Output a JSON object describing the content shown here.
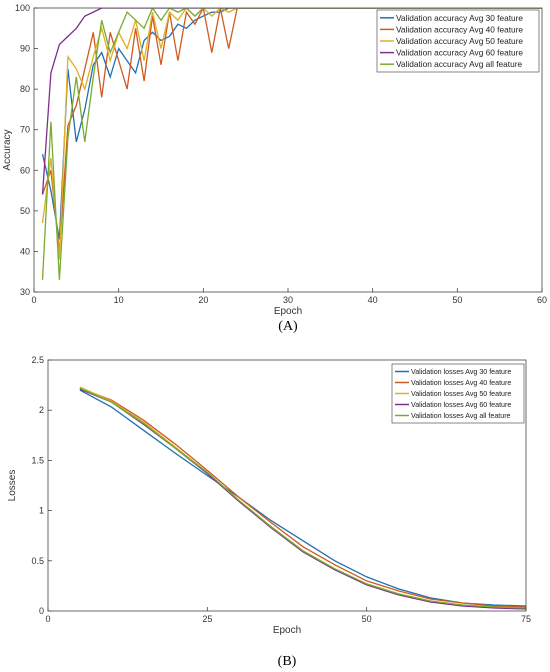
{
  "chart_data": [
    {
      "type": "line",
      "panel_label": "(A)",
      "xlabel": "Epoch",
      "ylabel": "Accuracy",
      "xlim": [
        0,
        60
      ],
      "ylim": [
        30,
        100
      ],
      "xticks": [
        0,
        10,
        20,
        30,
        40,
        50,
        60
      ],
      "yticks": [
        30,
        40,
        50,
        60,
        70,
        80,
        90,
        100
      ],
      "grid": false,
      "legend_position": "top-right",
      "series": [
        {
          "name": "Validation accuracy Avg 30 feature",
          "color": "#1f6fb4",
          "x": [
            1,
            2,
            3,
            4,
            5,
            6,
            7,
            8,
            9,
            10,
            11,
            12,
            13,
            14,
            15,
            16,
            17,
            18,
            19,
            20,
            21,
            22,
            23,
            24,
            25,
            30,
            40,
            50,
            60
          ],
          "y": [
            64,
            55,
            43,
            85,
            67,
            75,
            86,
            89,
            83,
            90,
            87,
            84,
            92,
            94,
            92,
            93,
            96,
            95,
            97,
            98,
            99,
            99,
            100,
            100,
            100,
            100,
            100,
            100,
            100
          ]
        },
        {
          "name": "Validation accuracy Avg 40 feature",
          "color": "#d05a1e",
          "x": [
            1,
            2,
            3,
            4,
            5,
            6,
            7,
            8,
            9,
            10,
            11,
            12,
            13,
            14,
            15,
            16,
            17,
            18,
            19,
            20,
            21,
            22,
            23,
            24,
            25,
            30,
            40,
            50,
            60
          ],
          "y": [
            54,
            60,
            40,
            71,
            76,
            85,
            94,
            78,
            94,
            87,
            80,
            95,
            82,
            98,
            86,
            99,
            87,
            99,
            96,
            100,
            89,
            100,
            90,
            100,
            100,
            100,
            100,
            100,
            100
          ]
        },
        {
          "name": "Validation accuracy Avg 50 feature",
          "color": "#e0b020",
          "x": [
            1,
            2,
            3,
            4,
            5,
            6,
            7,
            8,
            9,
            10,
            11,
            12,
            13,
            14,
            15,
            16,
            17,
            18,
            19,
            20,
            21,
            22,
            23,
            24,
            25,
            30,
            40,
            50,
            60
          ],
          "y": [
            47,
            63,
            38,
            88,
            85,
            80,
            88,
            95,
            87,
            94,
            90,
            97,
            87,
            99,
            90,
            99,
            97,
            100,
            98,
            100,
            98,
            100,
            99,
            100,
            100,
            100,
            100,
            100,
            100
          ]
        },
        {
          "name": "Validation accuracy Avg 60 feature",
          "color": "#7e2f8e",
          "x": [
            1,
            2,
            3,
            4,
            5,
            6,
            7,
            8,
            9,
            10,
            11,
            12,
            13,
            14,
            15,
            20,
            30,
            40,
            50,
            60
          ],
          "y": [
            54,
            84,
            91,
            93,
            95,
            98,
            99,
            100,
            100,
            100,
            100,
            100,
            100,
            100,
            100,
            100,
            100,
            100,
            100,
            100
          ]
        },
        {
          "name": "Validation accuracy Avg all feature",
          "color": "#77ac30",
          "x": [
            1,
            2,
            3,
            4,
            5,
            6,
            7,
            8,
            9,
            10,
            11,
            12,
            13,
            14,
            15,
            16,
            17,
            18,
            19,
            20,
            21,
            22,
            23,
            24,
            25,
            30,
            40,
            50,
            60
          ],
          "y": [
            33,
            72,
            33,
            68,
            83,
            67,
            83,
            97,
            89,
            94,
            99,
            97,
            95,
            100,
            97,
            100,
            99,
            100,
            98,
            100,
            100,
            100,
            100,
            100,
            100,
            100,
            100,
            100,
            100
          ]
        }
      ]
    },
    {
      "type": "line",
      "panel_label": "(B)",
      "xlabel": "Epoch",
      "ylabel": "Losses",
      "xlim": [
        0,
        75
      ],
      "ylim": [
        0,
        2.5
      ],
      "xticks": [
        0,
        25,
        50,
        75
      ],
      "yticks": [
        0,
        0.5,
        1,
        1.5,
        2,
        2.5
      ],
      "grid": false,
      "legend_position": "top-right",
      "series": [
        {
          "name": "Validation losses Avg 30 feature",
          "color": "#1f6fb4",
          "x": [
            5,
            10,
            15,
            20,
            25,
            30,
            35,
            40,
            45,
            50,
            55,
            60,
            65,
            70,
            75
          ],
          "y": [
            2.2,
            2.03,
            1.8,
            1.57,
            1.35,
            1.13,
            0.9,
            0.7,
            0.5,
            0.34,
            0.22,
            0.13,
            0.08,
            0.06,
            0.05
          ]
        },
        {
          "name": "Validation losses Avg 40 feature",
          "color": "#d05a1e",
          "x": [
            5,
            10,
            15,
            20,
            25,
            30,
            35,
            40,
            45,
            50,
            55,
            60,
            65,
            70,
            75
          ],
          "y": [
            2.22,
            2.1,
            1.9,
            1.66,
            1.4,
            1.13,
            0.88,
            0.64,
            0.46,
            0.3,
            0.2,
            0.12,
            0.08,
            0.05,
            0.04
          ]
        },
        {
          "name": "Validation losses Avg 50 feature",
          "color": "#e0b020",
          "x": [
            5,
            10,
            15,
            20,
            25,
            30,
            35,
            40,
            45,
            50,
            55,
            60,
            65,
            70,
            75
          ],
          "y": [
            2.23,
            2.09,
            1.88,
            1.63,
            1.38,
            1.1,
            0.84,
            0.6,
            0.42,
            0.27,
            0.17,
            0.1,
            0.06,
            0.04,
            0.03
          ]
        },
        {
          "name": "Validation losses Avg 60 feature",
          "color": "#7e2f8e",
          "x": [
            5,
            10,
            15,
            20,
            25,
            30,
            35,
            40,
            45,
            50,
            55,
            60,
            65,
            70,
            75
          ],
          "y": [
            2.21,
            2.08,
            1.86,
            1.62,
            1.37,
            1.09,
            0.83,
            0.59,
            0.41,
            0.26,
            0.16,
            0.09,
            0.05,
            0.03,
            0.02
          ]
        },
        {
          "name": "Validation losses Avg all feature",
          "color": "#77ac30",
          "x": [
            5,
            10,
            15,
            20,
            25,
            30,
            35,
            40,
            45,
            50,
            55,
            60,
            65,
            70,
            75
          ],
          "y": [
            2.22,
            2.08,
            1.87,
            1.62,
            1.38,
            1.1,
            0.84,
            0.6,
            0.42,
            0.27,
            0.17,
            0.1,
            0.06,
            0.04,
            0.03
          ]
        }
      ]
    }
  ]
}
